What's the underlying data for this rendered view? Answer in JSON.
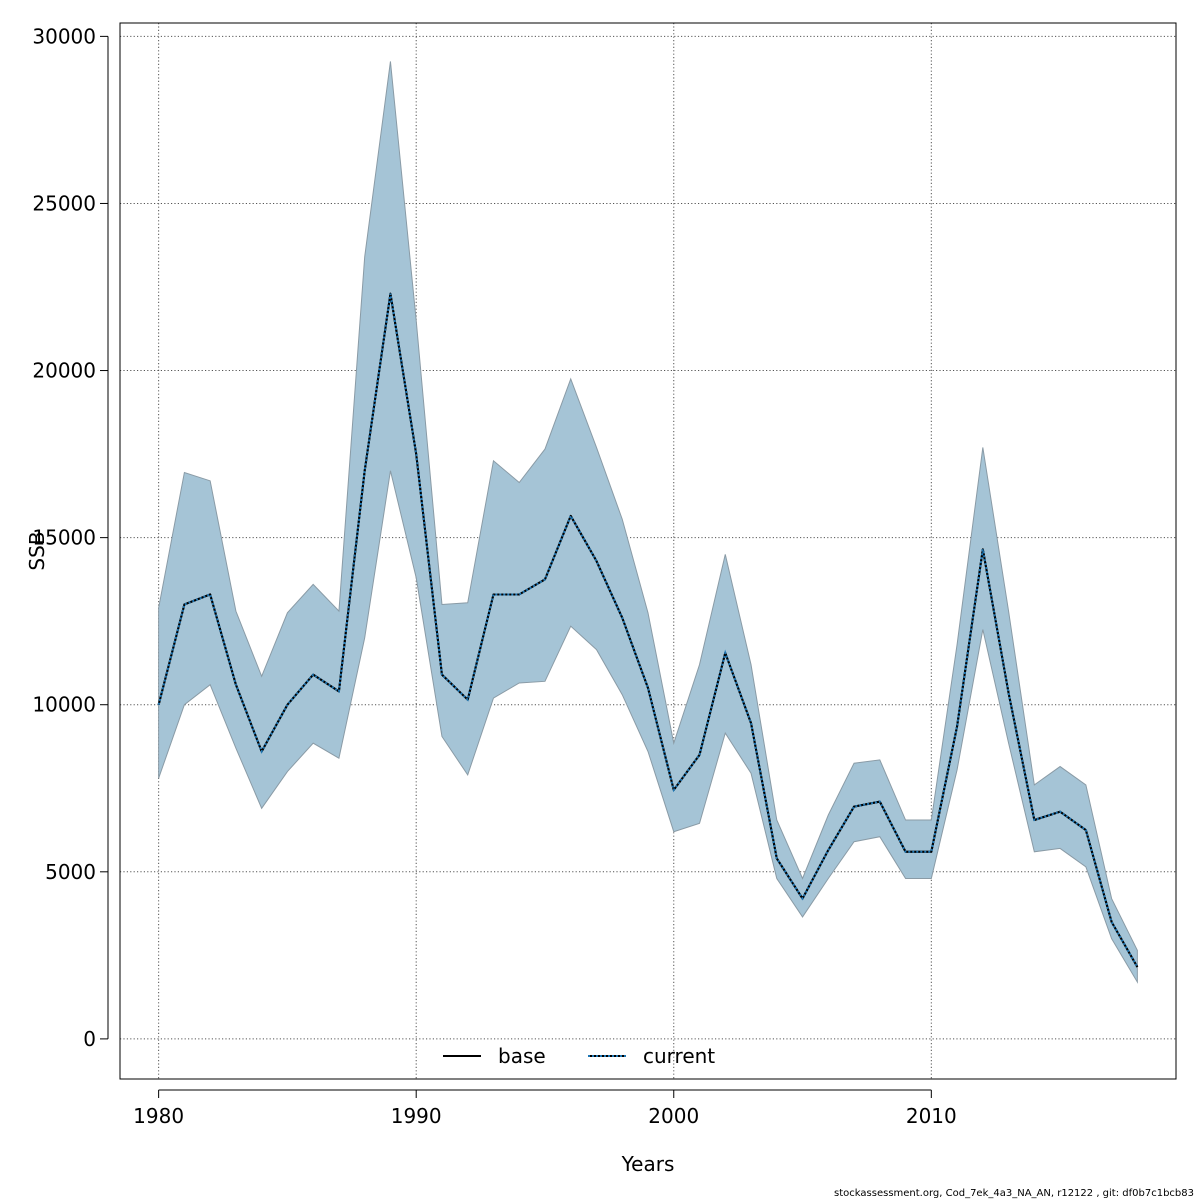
{
  "chart_data": {
    "type": "area",
    "title": "",
    "xlabel": "Years",
    "ylabel": "SSB",
    "xlim": [
      1978.5,
      2019.5
    ],
    "ylim": [
      -1200,
      30400
    ],
    "x_ticks": [
      1980,
      1990,
      2000,
      2010
    ],
    "x_tick_labels": [
      "1980",
      "1990",
      "2000",
      "2010"
    ],
    "y_ticks": [
      0,
      5000,
      10000,
      15000,
      20000,
      25000,
      30000
    ],
    "y_tick_labels": [
      "0",
      "5000",
      "10000",
      "15000",
      "20000",
      "25000",
      "30000"
    ],
    "grid": true,
    "legend_position": "bottom-center",
    "x": [
      1980,
      1981,
      1982,
      1983,
      1984,
      1985,
      1986,
      1987,
      1988,
      1989,
      1990,
      1991,
      1992,
      1993,
      1994,
      1995,
      1996,
      1997,
      1998,
      1999,
      2000,
      2001,
      2002,
      2003,
      2004,
      2005,
      2006,
      2007,
      2008,
      2009,
      2010,
      2011,
      2012,
      2013,
      2014,
      2015,
      2016,
      2017,
      2018
    ],
    "band": {
      "lower": [
        7800,
        10000,
        10600,
        8700,
        6900,
        8000,
        8850,
        8400,
        12000,
        17000,
        13800,
        9050,
        7900,
        10200,
        10650,
        10700,
        12350,
        11650,
        10300,
        8600,
        6200,
        6450,
        9150,
        7950,
        4800,
        3650,
        4800,
        5900,
        6050,
        4800,
        4800,
        8050,
        12250,
        8850,
        5600,
        5700,
        5150,
        3000,
        1700
      ],
      "upper": [
        12900,
        16950,
        16700,
        12800,
        10850,
        12750,
        13600,
        12800,
        23400,
        29250,
        21500,
        13000,
        13050,
        17300,
        16650,
        17650,
        19750,
        17700,
        15550,
        12750,
        8850,
        11200,
        14500,
        11200,
        6550,
        4800,
        6700,
        8250,
        8350,
        6550,
        6550,
        11800,
        17700,
        12800,
        7600,
        8150,
        7600,
        4200,
        2650
      ],
      "color": "#a5c4d6",
      "edge_color": "#8a9ba6"
    },
    "series": [
      {
        "name": "base",
        "style": "solid",
        "color": "#000000",
        "values": [
          10000,
          13000,
          13300,
          10600,
          8600,
          10000,
          10900,
          10400,
          17000,
          22300,
          17500,
          10900,
          10150,
          13300,
          13300,
          13750,
          15650,
          14300,
          12600,
          10500,
          7450,
          8500,
          11550,
          9450,
          5400,
          4200,
          5650,
          6950,
          7100,
          5600,
          5600,
          9350,
          14650,
          10350,
          6550,
          6800,
          6250,
          3500,
          2150
        ]
      },
      {
        "name": "current",
        "style": "dotted",
        "color": "#1f77b4",
        "values": [
          10000,
          13000,
          13300,
          10600,
          8600,
          10000,
          10900,
          10400,
          17000,
          22300,
          17500,
          10900,
          10150,
          13300,
          13300,
          13750,
          15650,
          14300,
          12600,
          10500,
          7450,
          8500,
          11550,
          9450,
          5400,
          4200,
          5650,
          6950,
          7100,
          5600,
          5600,
          9350,
          14650,
          10350,
          6550,
          6800,
          6250,
          3500,
          2150
        ]
      }
    ]
  },
  "footer_text": "stockassessment.org, Cod_7ek_4a3_NA_AN, r12122 , git: df0b7c1bcb83"
}
